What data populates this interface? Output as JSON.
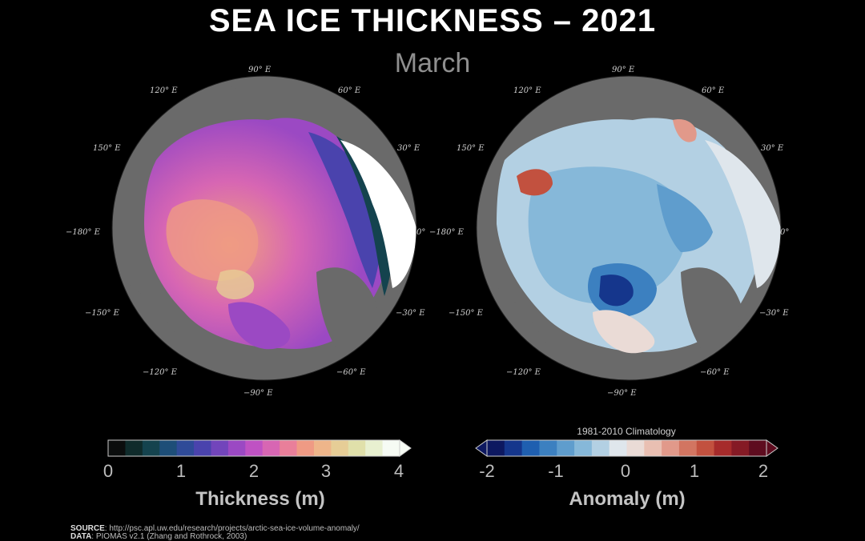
{
  "header": {
    "title": "SEA ICE THICKNESS – 2021",
    "subtitle": "March"
  },
  "map_left": {
    "ticks": {
      "lon90E": "90° E",
      "lon120E": "120° E",
      "lon60E": "60° E",
      "lon150E": "150° E",
      "lon30E": "30° E",
      "lonm180E": "−180° E",
      "lon0E": "0°",
      "lonm150E": "−150° E",
      "lonm30E": "−30° E",
      "lonm120E": "−120° E",
      "lonm60E": "−60° E",
      "lonm90E": "−90° E"
    }
  },
  "map_right": {
    "ticks": {
      "lon90E": "90° E",
      "lon120E": "120° E",
      "lon60E": "60° E",
      "lon150E": "150° E",
      "lon30E": "30° E",
      "lonm180E": "−180° E",
      "lon0E": "0°",
      "lonm150E": "−150° E",
      "lonm30E": "−30° E",
      "lonm120E": "−120° E",
      "lonm60E": "−60° E",
      "lonm90E": "−90° E"
    }
  },
  "colorbar_thickness": {
    "title": "Thickness (m)",
    "labels": [
      "0",
      "1",
      "2",
      "3",
      "4"
    ],
    "range": [
      0,
      4
    ],
    "colors": [
      "#0b0d0d",
      "#0f2b2b",
      "#14434e",
      "#1d4e78",
      "#2f4b98",
      "#4a43ad",
      "#7245bb",
      "#9b49c3",
      "#bf52c3",
      "#d766b3",
      "#e97f9a",
      "#ef9a84",
      "#eeb58a",
      "#e6cd96",
      "#e0e0aa",
      "#e8f0d0",
      "#f6fbf4"
    ]
  },
  "colorbar_anomaly": {
    "title": "Anomaly (m)",
    "note": "1981-2010 Climatology",
    "labels": [
      "-2",
      "-1",
      "0",
      "1",
      "2"
    ],
    "range": [
      -2,
      2
    ],
    "colors": [
      "#0d1860",
      "#15368c",
      "#1f5fb0",
      "#3c80c0",
      "#5f9dcd",
      "#86b8d9",
      "#b3d0e3",
      "#dfe6ec",
      "#eadbd6",
      "#e9bfb2",
      "#e1998a",
      "#d27561",
      "#c2513f",
      "#a62b2b",
      "#851a25",
      "#5e0c1f"
    ]
  },
  "footer": {
    "source_label": "SOURCE",
    "source_text": ": http://psc.apl.uw.edu/research/projects/arctic-sea-ice-volume-anomaly/",
    "data_label": "DATA",
    "data_text": ": PIOMAS v2.1 (Zhang and Rothrock, 2003)"
  }
}
